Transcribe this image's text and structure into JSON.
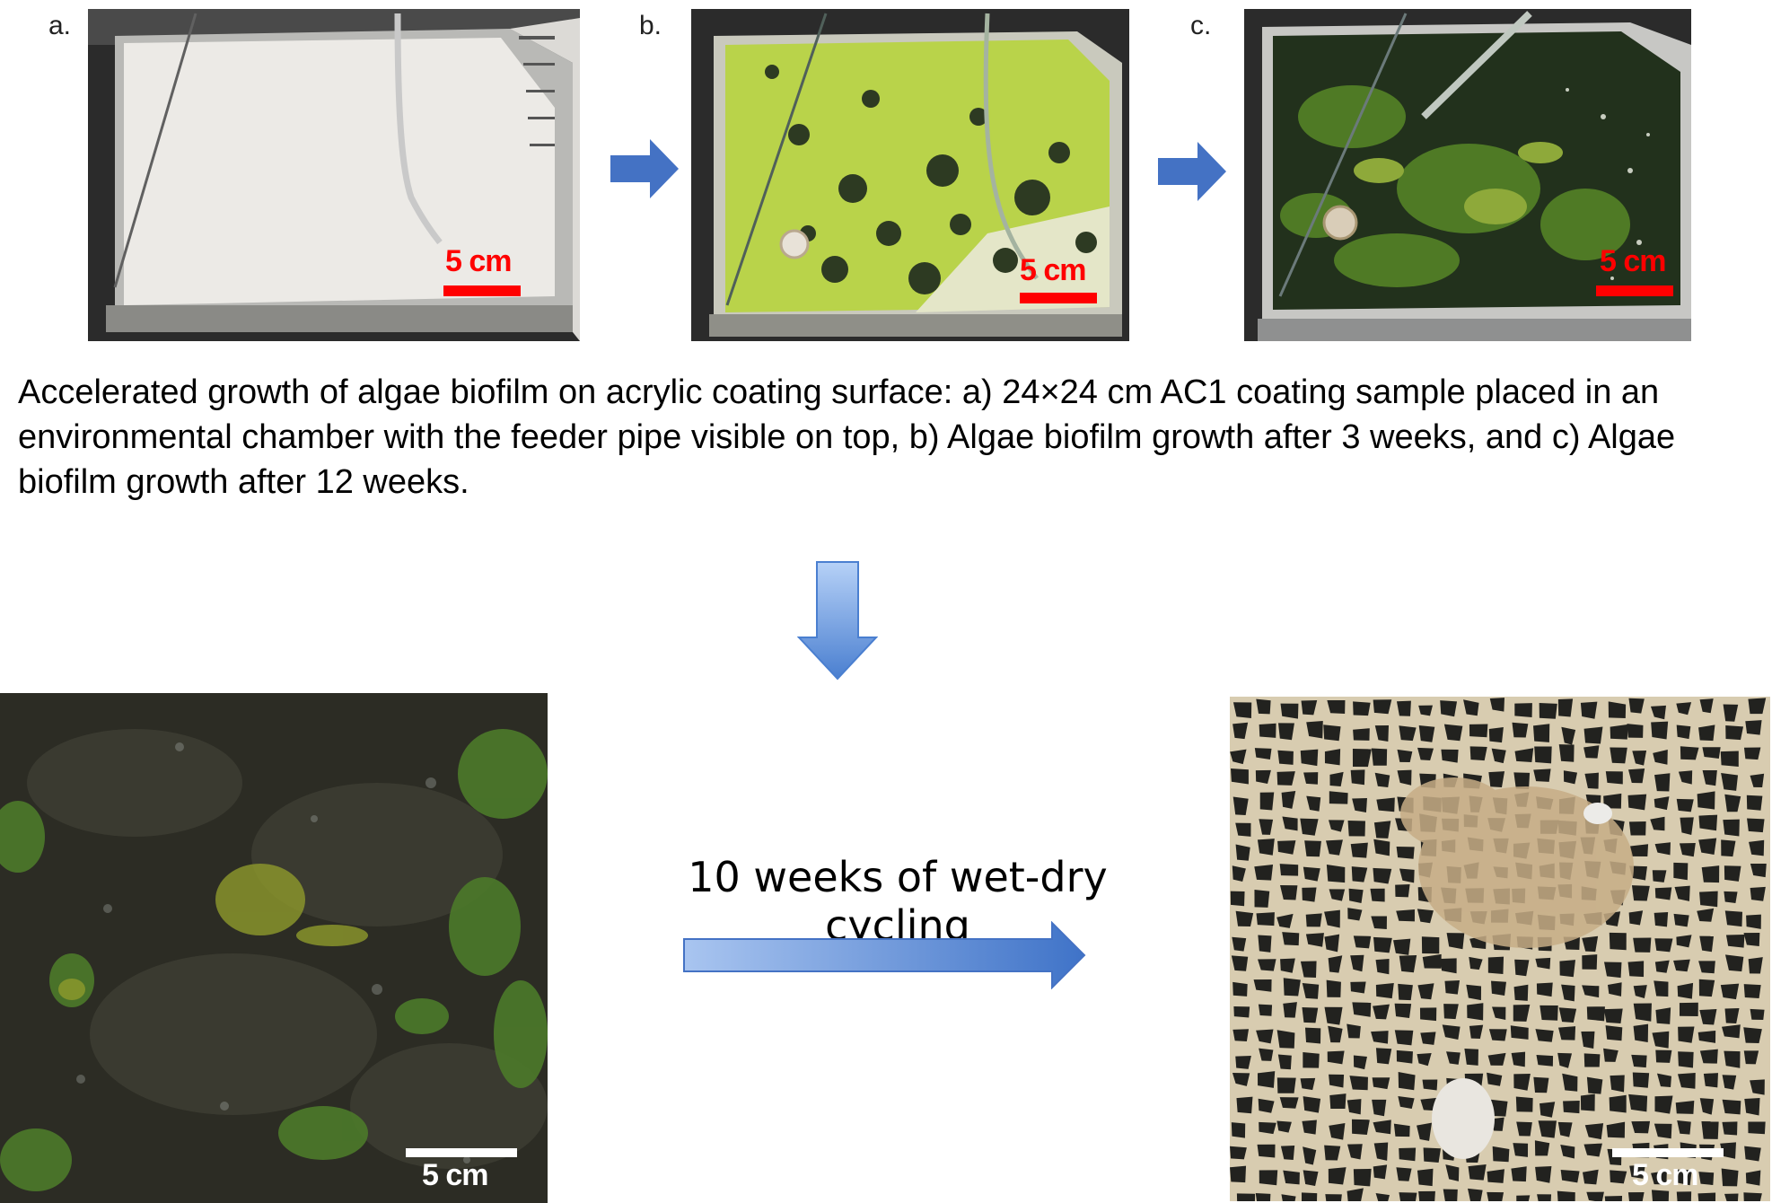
{
  "panels": {
    "a": {
      "letter": "a.",
      "scale_label": "5 cm"
    },
    "b": {
      "letter": "b.",
      "scale_label": "5 cm"
    },
    "c": {
      "letter": "c.",
      "scale_label": "5 cm"
    },
    "before": {
      "scale_label": "5 cm"
    },
    "after": {
      "scale_label": "5 cm"
    }
  },
  "caption": "Accelerated growth of algae biofilm on acrylic coating surface: a) 24×24 cm AC1 coating sample placed in an environmental chamber with the feeder pipe visible on top, b) Algae biofilm growth after 3 weeks, and c) Algae biofilm growth after 12 weeks.",
  "cycle_label": "10 weeks of wet-dry cycling",
  "colors": {
    "arrow_blue": "#4472c4",
    "arrow_light": "#a9c5f0",
    "scale_red": "#ff0000",
    "scale_white": "#ffffff"
  }
}
